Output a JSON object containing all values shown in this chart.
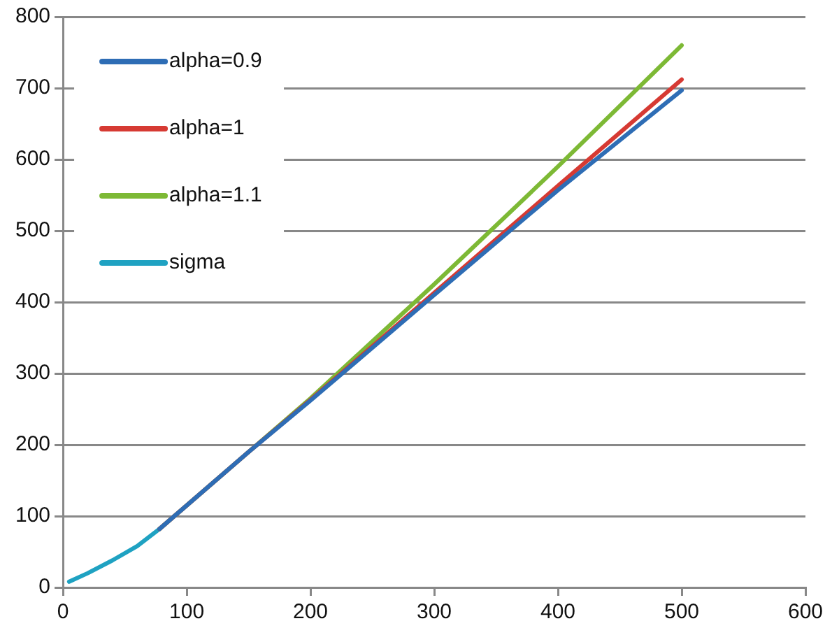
{
  "chart_data": {
    "type": "line",
    "xlim": [
      0,
      600
    ],
    "xticks": [
      0,
      100,
      200,
      300,
      400,
      500,
      600
    ],
    "ylim": [
      0,
      800
    ],
    "yticks": [
      0,
      100,
      200,
      300,
      400,
      500,
      600,
      700,
      800
    ],
    "grid": "y",
    "legend": "top left",
    "marker": "none",
    "line_style": "solid",
    "series": [
      {
        "name": "alpha=0.9",
        "color": "#2e6db5",
        "x": [
          78,
          150,
          200,
          300,
          400,
          500
        ],
        "values": [
          82,
          190,
          262,
          410,
          557,
          697
        ]
      },
      {
        "name": "alpha=1",
        "color": "#d63a33",
        "x": [
          78,
          150,
          200,
          300,
          400,
          500
        ],
        "values": [
          82,
          190,
          263,
          413,
          563,
          712
        ]
      },
      {
        "name": "alpha=1.1",
        "color": "#7db935",
        "x": [
          78,
          150,
          200,
          300,
          400,
          500
        ],
        "values": [
          82,
          190,
          265,
          425,
          590,
          760
        ]
      },
      {
        "name": "sigma",
        "color": "#1fa2c2",
        "x": [
          5,
          20,
          40,
          60,
          78
        ],
        "values": [
          8,
          20,
          38,
          58,
          82
        ]
      }
    ]
  }
}
